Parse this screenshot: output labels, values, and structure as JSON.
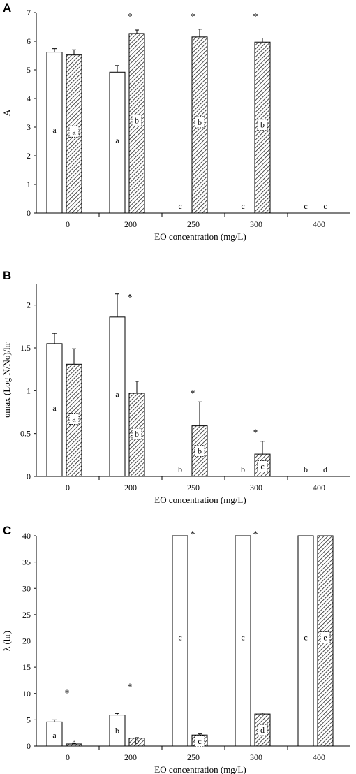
{
  "chart_data": [
    {
      "panel": "A",
      "type": "bar",
      "categories": [
        "0",
        "200",
        "250",
        "300",
        "400"
      ],
      "xlabel": "EO concentration (mg/L)",
      "ylabel": "A",
      "ylim": [
        0,
        7
      ],
      "yticks": [
        "0",
        "1",
        "2",
        "3",
        "4",
        "5",
        "6",
        "7"
      ],
      "series": [
        {
          "pattern": "open",
          "values": [
            5.62,
            4.92,
            0,
            0,
            0
          ],
          "errors": [
            0.12,
            0.23,
            0,
            0,
            0
          ],
          "letters": [
            "a",
            "a",
            "c",
            "c",
            "c"
          ]
        },
        {
          "pattern": "hatched",
          "values": [
            5.52,
            6.27,
            6.15,
            5.97,
            0
          ],
          "errors": [
            0.18,
            0.12,
            0.27,
            0.14,
            0
          ],
          "letters": [
            "a",
            "b",
            "b",
            "b",
            "c"
          ]
        }
      ],
      "significance": [
        false,
        true,
        true,
        true,
        false
      ],
      "star": "*"
    },
    {
      "panel": "B",
      "type": "bar",
      "categories": [
        "0",
        "200",
        "250",
        "300",
        "400"
      ],
      "xlabel": "EO concentration (mg/L)",
      "ylabel": "υmax (Log N/No)/hr",
      "ylim": [
        0,
        2.25
      ],
      "yticks": [
        "0",
        "0.5",
        "1",
        "1.5",
        "2"
      ],
      "series": [
        {
          "pattern": "open",
          "values": [
            1.55,
            1.86,
            0,
            0,
            0
          ],
          "errors": [
            0.12,
            0.27,
            0,
            0,
            0
          ],
          "letters": [
            "a",
            "a",
            "b",
            "b",
            "b"
          ]
        },
        {
          "pattern": "hatched",
          "values": [
            1.31,
            0.97,
            0.59,
            0.26,
            0
          ],
          "errors": [
            0.18,
            0.14,
            0.28,
            0.15,
            0
          ],
          "letters": [
            "a",
            "b",
            "b",
            "c",
            "d"
          ]
        }
      ],
      "significance": [
        false,
        true,
        true,
        true,
        false
      ],
      "star": "*"
    },
    {
      "panel": "C",
      "type": "bar",
      "categories": [
        "0",
        "200",
        "250",
        "300",
        "400"
      ],
      "xlabel": "EO concentration (mg/L)",
      "ylabel": "λ (hr)",
      "ylim": [
        0,
        40
      ],
      "yticks": [
        "0",
        "5",
        "10",
        "15",
        "20",
        "25",
        "30",
        "35",
        "40"
      ],
      "series": [
        {
          "pattern": "open",
          "values": [
            4.6,
            5.9,
            40,
            40,
            40
          ],
          "errors": [
            0.4,
            0.3,
            0,
            0,
            0
          ],
          "letters": [
            "a",
            "b",
            "c",
            "c",
            "c"
          ]
        },
        {
          "pattern": "hatched",
          "values": [
            0.4,
            1.5,
            2.1,
            6.1,
            40
          ],
          "errors": [
            0.15,
            0.1,
            0.2,
            0.2,
            0
          ],
          "letters": [
            "a",
            "b",
            "c",
            "d",
            "e"
          ]
        }
      ],
      "significance": [
        true,
        true,
        true,
        true,
        false
      ],
      "star": "*"
    }
  ]
}
